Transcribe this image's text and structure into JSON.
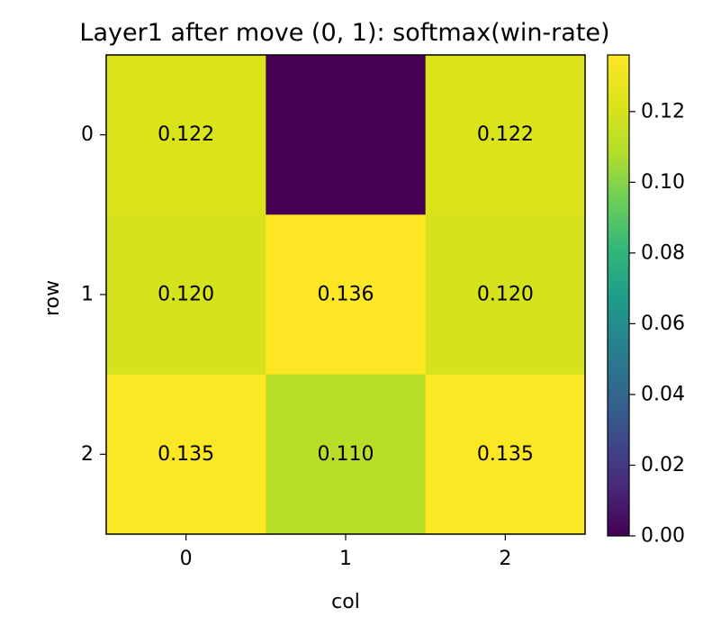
{
  "chart_data": {
    "type": "heatmap",
    "title": "Layer1 after move (0, 1): softmax(win-rate)",
    "xlabel": "col",
    "ylabel": "row",
    "x_categories": [
      "0",
      "1",
      "2"
    ],
    "y_categories": [
      "0",
      "1",
      "2"
    ],
    "values": [
      [
        0.122,
        0.0,
        0.122
      ],
      [
        0.12,
        0.136,
        0.12
      ],
      [
        0.135,
        0.11,
        0.135
      ]
    ],
    "cell_labels": [
      [
        "0.122",
        "",
        "0.122"
      ],
      [
        "0.120",
        "0.136",
        "0.120"
      ],
      [
        "0.135",
        "0.110",
        "0.135"
      ]
    ],
    "colormap": "viridis",
    "color_range": [
      0.0,
      0.136
    ],
    "colorbar": {
      "ticks": [
        0.0,
        0.02,
        0.04,
        0.06,
        0.08,
        0.1,
        0.12
      ],
      "tick_labels": [
        "0.00",
        "0.02",
        "0.04",
        "0.06",
        "0.08",
        "0.10",
        "0.12"
      ],
      "placement": "right"
    },
    "grid": false
  }
}
